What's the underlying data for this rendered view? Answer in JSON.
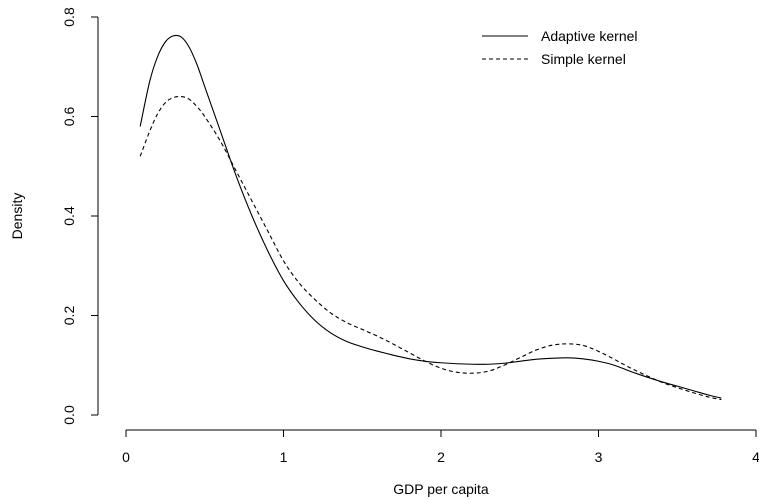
{
  "chart_data": {
    "type": "line",
    "title": "",
    "xlabel": "GDP per capita",
    "ylabel": "Density",
    "xlim": [
      0,
      4
    ],
    "ylim": [
      0,
      0.8
    ],
    "x_ticks": [
      "0",
      "1",
      "2",
      "3",
      "4"
    ],
    "y_ticks": [
      "0.0",
      "0.2",
      "0.4",
      "0.6",
      "0.8"
    ],
    "grid": false,
    "legend_position": "top-right",
    "series": [
      {
        "name": "Adaptive kernel",
        "line_style": "solid",
        "color": "#000000",
        "x": [
          0.09,
          0.15,
          0.2,
          0.25,
          0.3,
          0.35,
          0.4,
          0.45,
          0.5,
          0.6,
          0.7,
          0.8,
          0.9,
          1.0,
          1.1,
          1.2,
          1.3,
          1.4,
          1.5,
          1.6,
          1.7,
          1.8,
          1.9,
          2.0,
          2.1,
          2.2,
          2.3,
          2.4,
          2.5,
          2.6,
          2.7,
          2.8,
          2.9,
          3.0,
          3.1,
          3.2,
          3.3,
          3.4,
          3.5,
          3.6,
          3.7,
          3.78
        ],
        "y": [
          0.58,
          0.67,
          0.72,
          0.75,
          0.762,
          0.76,
          0.74,
          0.705,
          0.66,
          0.57,
          0.48,
          0.4,
          0.33,
          0.27,
          0.225,
          0.19,
          0.165,
          0.148,
          0.137,
          0.128,
          0.12,
          0.113,
          0.108,
          0.105,
          0.103,
          0.102,
          0.102,
          0.104,
          0.108,
          0.112,
          0.114,
          0.115,
          0.113,
          0.108,
          0.1,
          0.088,
          0.077,
          0.067,
          0.058,
          0.049,
          0.04,
          0.034
        ]
      },
      {
        "name": "Simple kernel",
        "line_style": "dashed",
        "color": "#000000",
        "x": [
          0.09,
          0.15,
          0.2,
          0.25,
          0.3,
          0.35,
          0.4,
          0.45,
          0.5,
          0.6,
          0.7,
          0.8,
          0.9,
          1.0,
          1.1,
          1.2,
          1.3,
          1.4,
          1.5,
          1.6,
          1.7,
          1.8,
          1.9,
          2.0,
          2.1,
          2.2,
          2.3,
          2.4,
          2.5,
          2.6,
          2.7,
          2.8,
          2.9,
          3.0,
          3.1,
          3.2,
          3.3,
          3.4,
          3.5,
          3.6,
          3.7,
          3.78
        ],
        "y": [
          0.52,
          0.57,
          0.605,
          0.628,
          0.638,
          0.64,
          0.635,
          0.62,
          0.6,
          0.55,
          0.49,
          0.43,
          0.37,
          0.31,
          0.265,
          0.232,
          0.205,
          0.186,
          0.172,
          0.158,
          0.142,
          0.125,
          0.108,
          0.094,
          0.086,
          0.084,
          0.088,
          0.1,
          0.115,
          0.13,
          0.14,
          0.143,
          0.14,
          0.128,
          0.112,
          0.095,
          0.08,
          0.066,
          0.055,
          0.045,
          0.036,
          0.031
        ]
      }
    ]
  }
}
